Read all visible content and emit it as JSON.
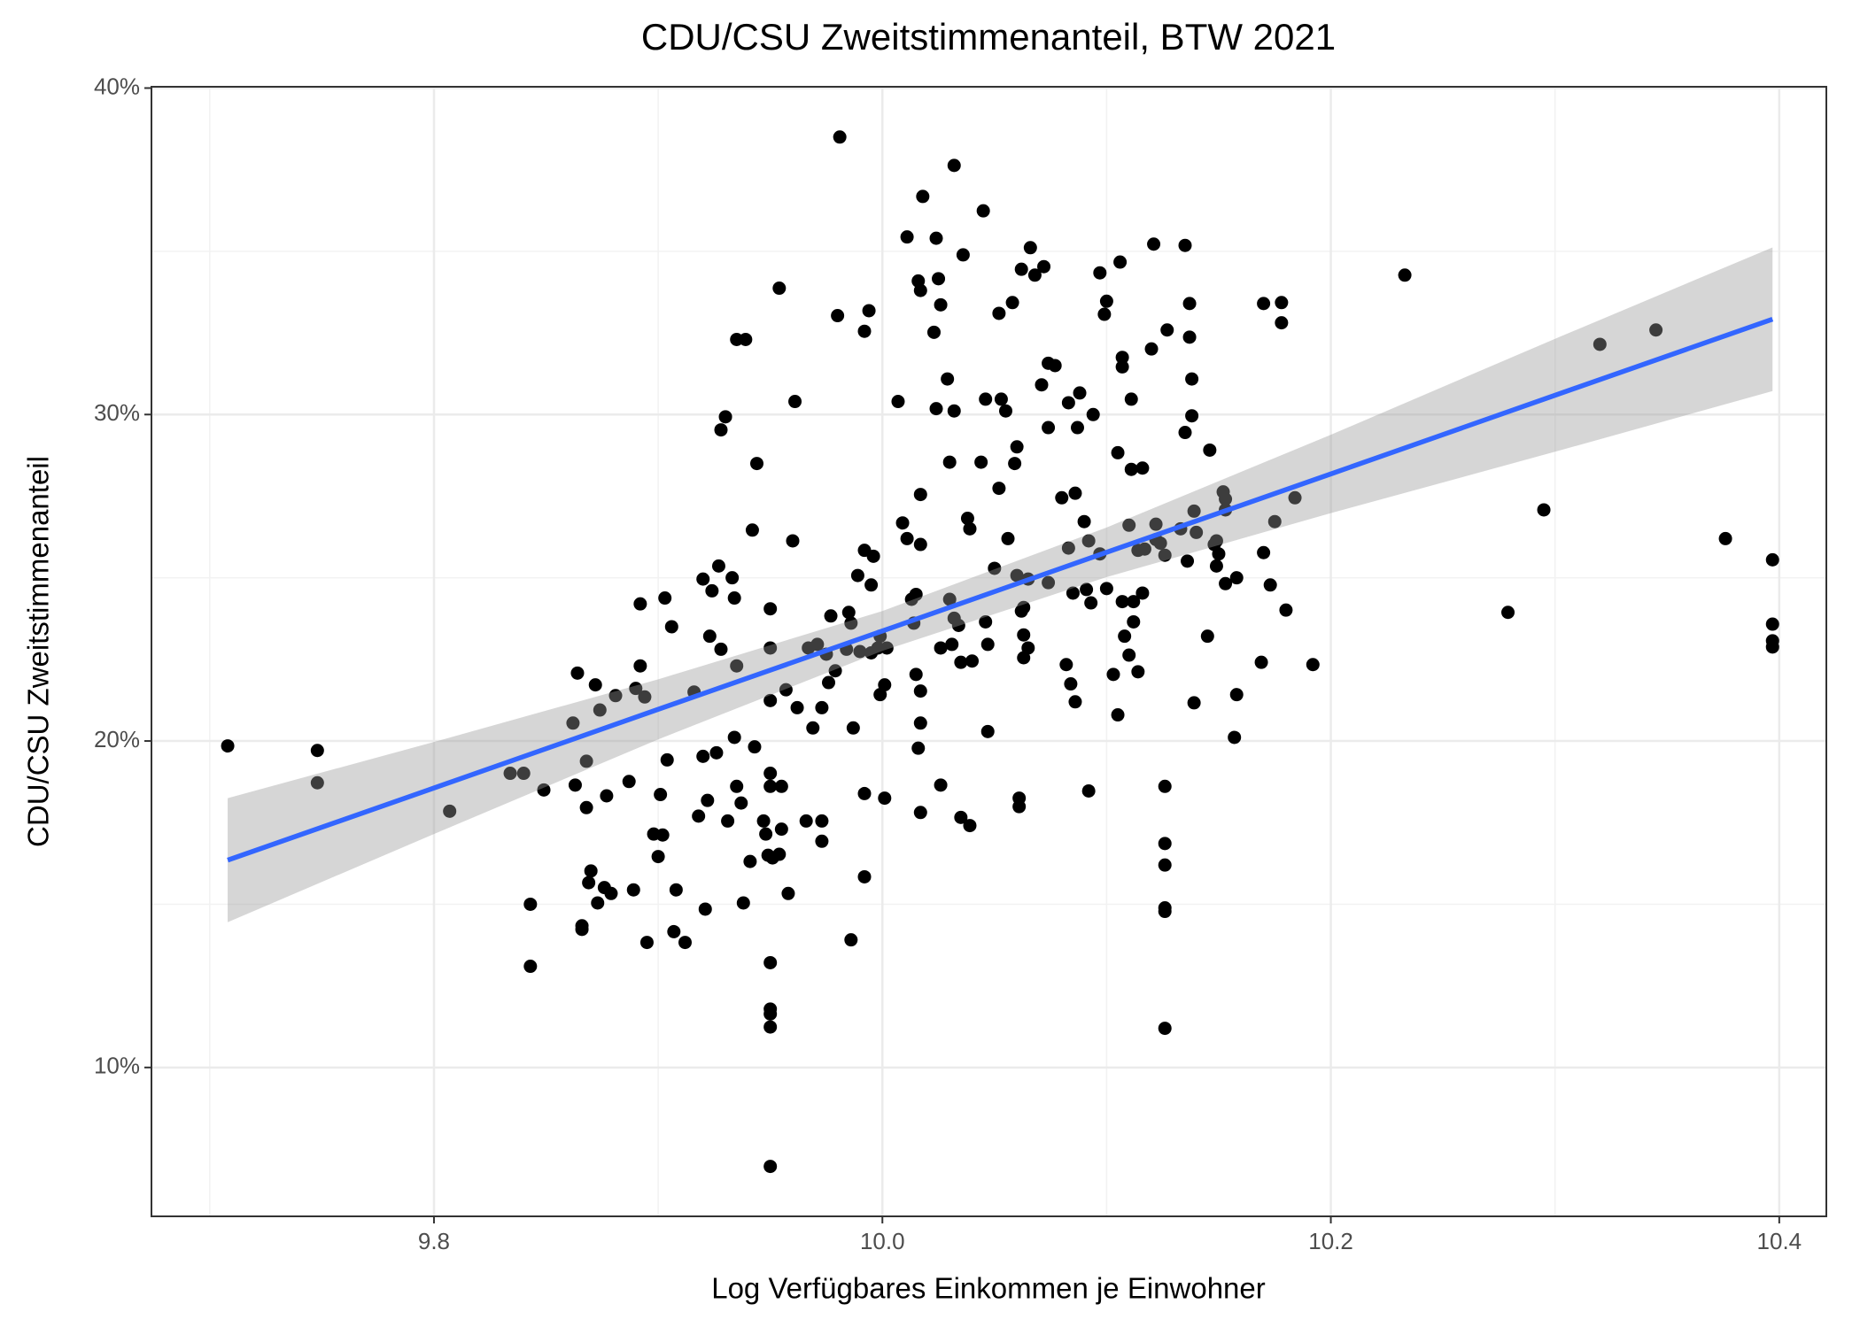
{
  "chart_data": {
    "type": "scatter",
    "title": "CDU/CSU Zweitstimmenanteil, BTW 2021",
    "x_label": "Log Verfügbares Einkommen je Einwohner",
    "y_label": "CDU/CSU Zweitstimmenanteil",
    "color": "#000000",
    "grid": true,
    "xlim": [
      9.674,
      10.421
    ],
    "ylim": [
      5.44,
      40.04
    ],
    "xticks": [
      9.8,
      {
        "value": 10,
        "label": "10.0"
      },
      10.2,
      10.4
    ],
    "yticks": [
      {
        "value": 10,
        "label": "10%"
      },
      {
        "value": 20,
        "label": "20%"
      },
      {
        "value": 30,
        "label": "30%"
      },
      {
        "value": 40,
        "label": "40%"
      }
    ],
    "minor_xticks": [
      9.7,
      9.9,
      10.1,
      10.3
    ],
    "minor_yticks": [
      15,
      25,
      35
    ],
    "x": [
      9.708,
      9.748,
      9.748,
      9.807,
      9.834,
      9.84,
      9.843,
      9.843,
      9.849,
      9.862,
      9.864,
      9.863,
      9.866,
      9.866,
      9.868,
      9.868,
      9.869,
      9.87,
      9.872,
      9.874,
      9.873,
      9.876,
      9.877,
      9.879,
      9.881,
      9.887,
      9.889,
      9.89,
      9.892,
      9.892,
      9.894,
      9.895,
      9.898,
      9.9,
      9.901,
      9.902,
      9.903,
      9.904,
      9.906,
      9.908,
      9.907,
      9.912,
      9.916,
      9.918,
      9.92,
      9.92,
      9.921,
      9.922,
      9.923,
      9.924,
      9.926,
      9.927,
      9.928,
      9.928,
      9.93,
      9.931,
      9.933,
      9.934,
      9.935,
      9.934,
      9.935,
      9.935,
      9.937,
      9.938,
      9.939,
      9.941,
      9.942,
      9.943,
      9.944,
      9.947,
      9.948,
      9.949,
      9.95,
      9.951,
      9.95,
      9.95,
      9.95,
      9.95,
      9.95,
      9.95,
      9.95,
      9.95,
      9.95,
      9.954,
      9.954,
      9.955,
      9.955,
      9.957,
      9.958,
      9.96,
      9.961,
      9.962,
      9.966,
      9.967,
      9.969,
      9.971,
      9.973,
      9.973,
      9.973,
      9.975,
      9.976,
      9.977,
      9.979,
      9.98,
      9.981,
      9.984,
      9.985,
      9.986,
      9.986,
      9.987,
      9.989,
      9.99,
      9.992,
      9.992,
      9.992,
      9.992,
      9.994,
      9.995,
      9.995,
      9.996,
      9.998,
      9.999,
      9.999,
      10.001,
      10.001,
      10.002,
      10.007,
      10.009,
      10.011,
      10.011,
      10.013,
      10.014,
      10.015,
      10.015,
      10.016,
      10.016,
      10.017,
      10.017,
      10.017,
      10.017,
      10.017,
      10.018,
      10.017,
      10.023,
      10.024,
      10.024,
      10.025,
      10.026,
      10.026,
      10.026,
      10.029,
      10.03,
      10.03,
      10.031,
      10.032,
      10.032,
      10.032,
      10.034,
      10.035,
      10.035,
      10.036,
      10.038,
      10.039,
      10.039,
      10.04,
      10.044,
      10.045,
      10.046,
      10.046,
      10.047,
      10.047,
      10.05,
      10.052,
      10.052,
      10.053,
      10.055,
      10.056,
      10.058,
      10.059,
      10.06,
      10.06,
      10.061,
      10.061,
      10.062,
      10.062,
      10.063,
      10.063,
      10.063,
      10.065,
      10.065,
      10.066,
      10.068,
      10.071,
      10.072,
      10.074,
      10.074,
      10.074,
      10.077,
      10.08,
      10.082,
      10.083,
      10.083,
      10.084,
      10.085,
      10.086,
      10.086,
      10.087,
      10.088,
      10.09,
      10.091,
      10.092,
      10.092,
      10.093,
      10.094,
      10.097,
      10.097,
      10.099,
      10.1,
      10.1,
      10.103,
      10.105,
      10.105,
      10.106,
      10.107,
      10.107,
      10.107,
      10.108,
      10.11,
      10.11,
      10.111,
      10.112,
      10.112,
      10.111,
      10.114,
      10.114,
      10.116,
      10.116,
      10.117,
      10.12,
      10.121,
      10.122,
      10.122,
      10.124,
      10.126,
      10.127,
      10.126,
      10.126,
      10.126,
      10.126,
      10.126,
      10.126,
      10.133,
      10.135,
      10.135,
      10.136,
      10.137,
      10.137,
      10.138,
      10.138,
      10.139,
      10.139,
      10.14,
      10.145,
      10.146,
      10.148,
      10.149,
      10.149,
      10.15,
      10.152,
      10.153,
      10.153,
      10.153,
      10.157,
      10.158,
      10.158,
      10.169,
      10.17,
      10.17,
      10.173,
      10.175,
      10.178,
      10.178,
      10.18,
      10.184,
      10.192,
      10.233,
      10.279,
      10.295,
      10.32,
      10.345,
      10.376,
      10.397,
      10.397,
      10.397,
      10.397
    ],
    "values": [
      19.85,
      19.71,
      18.72,
      17.85,
      19.01,
      19.01,
      15.0,
      13.1,
      18.5,
      20.55,
      22.08,
      18.65,
      14.23,
      14.34,
      19.38,
      17.96,
      15.66,
      16.02,
      21.72,
      20.95,
      15.04,
      15.51,
      18.32,
      15.33,
      21.39,
      18.76,
      15.44,
      21.61,
      24.2,
      22.3,
      21.35,
      13.83,
      17.15,
      16.46,
      18.36,
      17.12,
      24.38,
      19.42,
      23.5,
      15.44,
      14.16,
      13.83,
      21.5,
      17.7,
      24.96,
      19.53,
      14.85,
      18.18,
      23.21,
      24.6,
      19.64,
      25.36,
      22.81,
      29.53,
      29.93,
      17.55,
      25.0,
      20.11,
      32.3,
      24.38,
      18.61,
      22.3,
      18.1,
      15.04,
      32.3,
      16.31,
      26.46,
      19.82,
      28.5,
      17.55,
      17.15,
      16.5,
      18.61,
      16.42,
      22.85,
      24.05,
      21.24,
      19.01,
      13.21,
      11.79,
      11.64,
      11.24,
      6.97,
      16.53,
      33.87,
      17.3,
      18.61,
      21.57,
      15.33,
      26.13,
      30.4,
      21.02,
      17.55,
      22.85,
      20.4,
      22.96,
      21.02,
      17.55,
      16.93,
      22.66,
      21.79,
      23.83,
      22.15,
      33.03,
      38.5,
      22.81,
      23.94,
      13.91,
      23.61,
      20.4,
      25.07,
      22.74,
      25.84,
      32.55,
      18.39,
      15.84,
      33.18,
      24.78,
      22.7,
      25.66,
      22.85,
      23.21,
      21.42,
      18.25,
      21.72,
      22.85,
      30.4,
      26.68,
      35.44,
      26.2,
      24.34,
      23.61,
      24.49,
      22.04,
      34.09,
      19.78,
      20.55,
      17.81,
      33.8,
      21.53,
      26.02,
      36.68,
      27.55,
      32.52,
      35.4,
      30.18,
      34.16,
      18.65,
      22.85,
      33.36,
      31.09,
      24.34,
      28.54,
      22.96,
      37.63,
      30.11,
      23.76,
      23.54,
      17.66,
      22.41,
      34.89,
      26.82,
      17.41,
      26.5,
      22.45,
      28.54,
      36.24,
      23.65,
      30.47,
      22.96,
      20.29,
      25.29,
      27.74,
      33.1,
      30.47,
      30.11,
      26.2,
      33.43,
      28.5,
      29.01,
      25.07,
      18.25,
      17.99,
      34.45,
      23.98,
      23.25,
      22.55,
      24.09,
      24.96,
      22.85,
      35.11,
      34.27,
      30.91,
      34.53,
      24.85,
      31.57,
      29.6,
      31.5,
      27.45,
      22.34,
      25.91,
      30.36,
      21.75,
      24.53,
      21.2,
      27.59,
      29.6,
      30.66,
      26.72,
      24.64,
      18.47,
      26.13,
      24.23,
      30.0,
      25.73,
      34.34,
      33.07,
      24.67,
      33.47,
      22.04,
      28.83,
      20.8,
      34.67,
      24.27,
      31.75,
      31.46,
      23.21,
      26.61,
      22.63,
      30.47,
      23.65,
      24.27,
      28.32,
      25.84,
      22.12,
      24.53,
      28.36,
      25.88,
      32.01,
      35.22,
      26.64,
      26.17,
      26.06,
      25.69,
      32.59,
      18.61,
      16.86,
      16.2,
      14.89,
      14.78,
      11.2,
      26.5,
      35.18,
      29.45,
      25.51,
      33.4,
      32.37,
      31.09,
      29.96,
      27.04,
      21.17,
      26.39,
      23.21,
      28.91,
      26.02,
      26.13,
      25.36,
      25.73,
      27.63,
      27.41,
      27.08,
      24.82,
      20.11,
      21.42,
      25.0,
      22.41,
      25.77,
      33.4,
      24.78,
      26.72,
      33.43,
      32.81,
      24.01,
      27.45,
      22.34,
      34.27,
      23.94,
      27.08,
      32.15,
      32.59,
      26.2,
      25.55,
      23.58,
      23.07,
      22.88
    ],
    "fit": {
      "color": "#3366ff",
      "x": [
        9.708,
        9.8,
        9.9,
        10.0,
        10.1,
        10.2,
        10.3,
        10.397
      ],
      "values": [
        16.35,
        18.56,
        20.97,
        23.37,
        25.78,
        28.18,
        30.59,
        32.92
      ]
    },
    "band": {
      "color": "#999999",
      "x": [
        9.708,
        9.8,
        9.9,
        10.0,
        10.1,
        10.2,
        10.3,
        10.397
      ],
      "lower": [
        14.45,
        17.15,
        20.05,
        22.76,
        25.02,
        26.98,
        28.86,
        30.72
      ],
      "upper": [
        18.25,
        19.97,
        21.89,
        23.98,
        26.54,
        29.38,
        32.32,
        35.12
      ]
    }
  }
}
